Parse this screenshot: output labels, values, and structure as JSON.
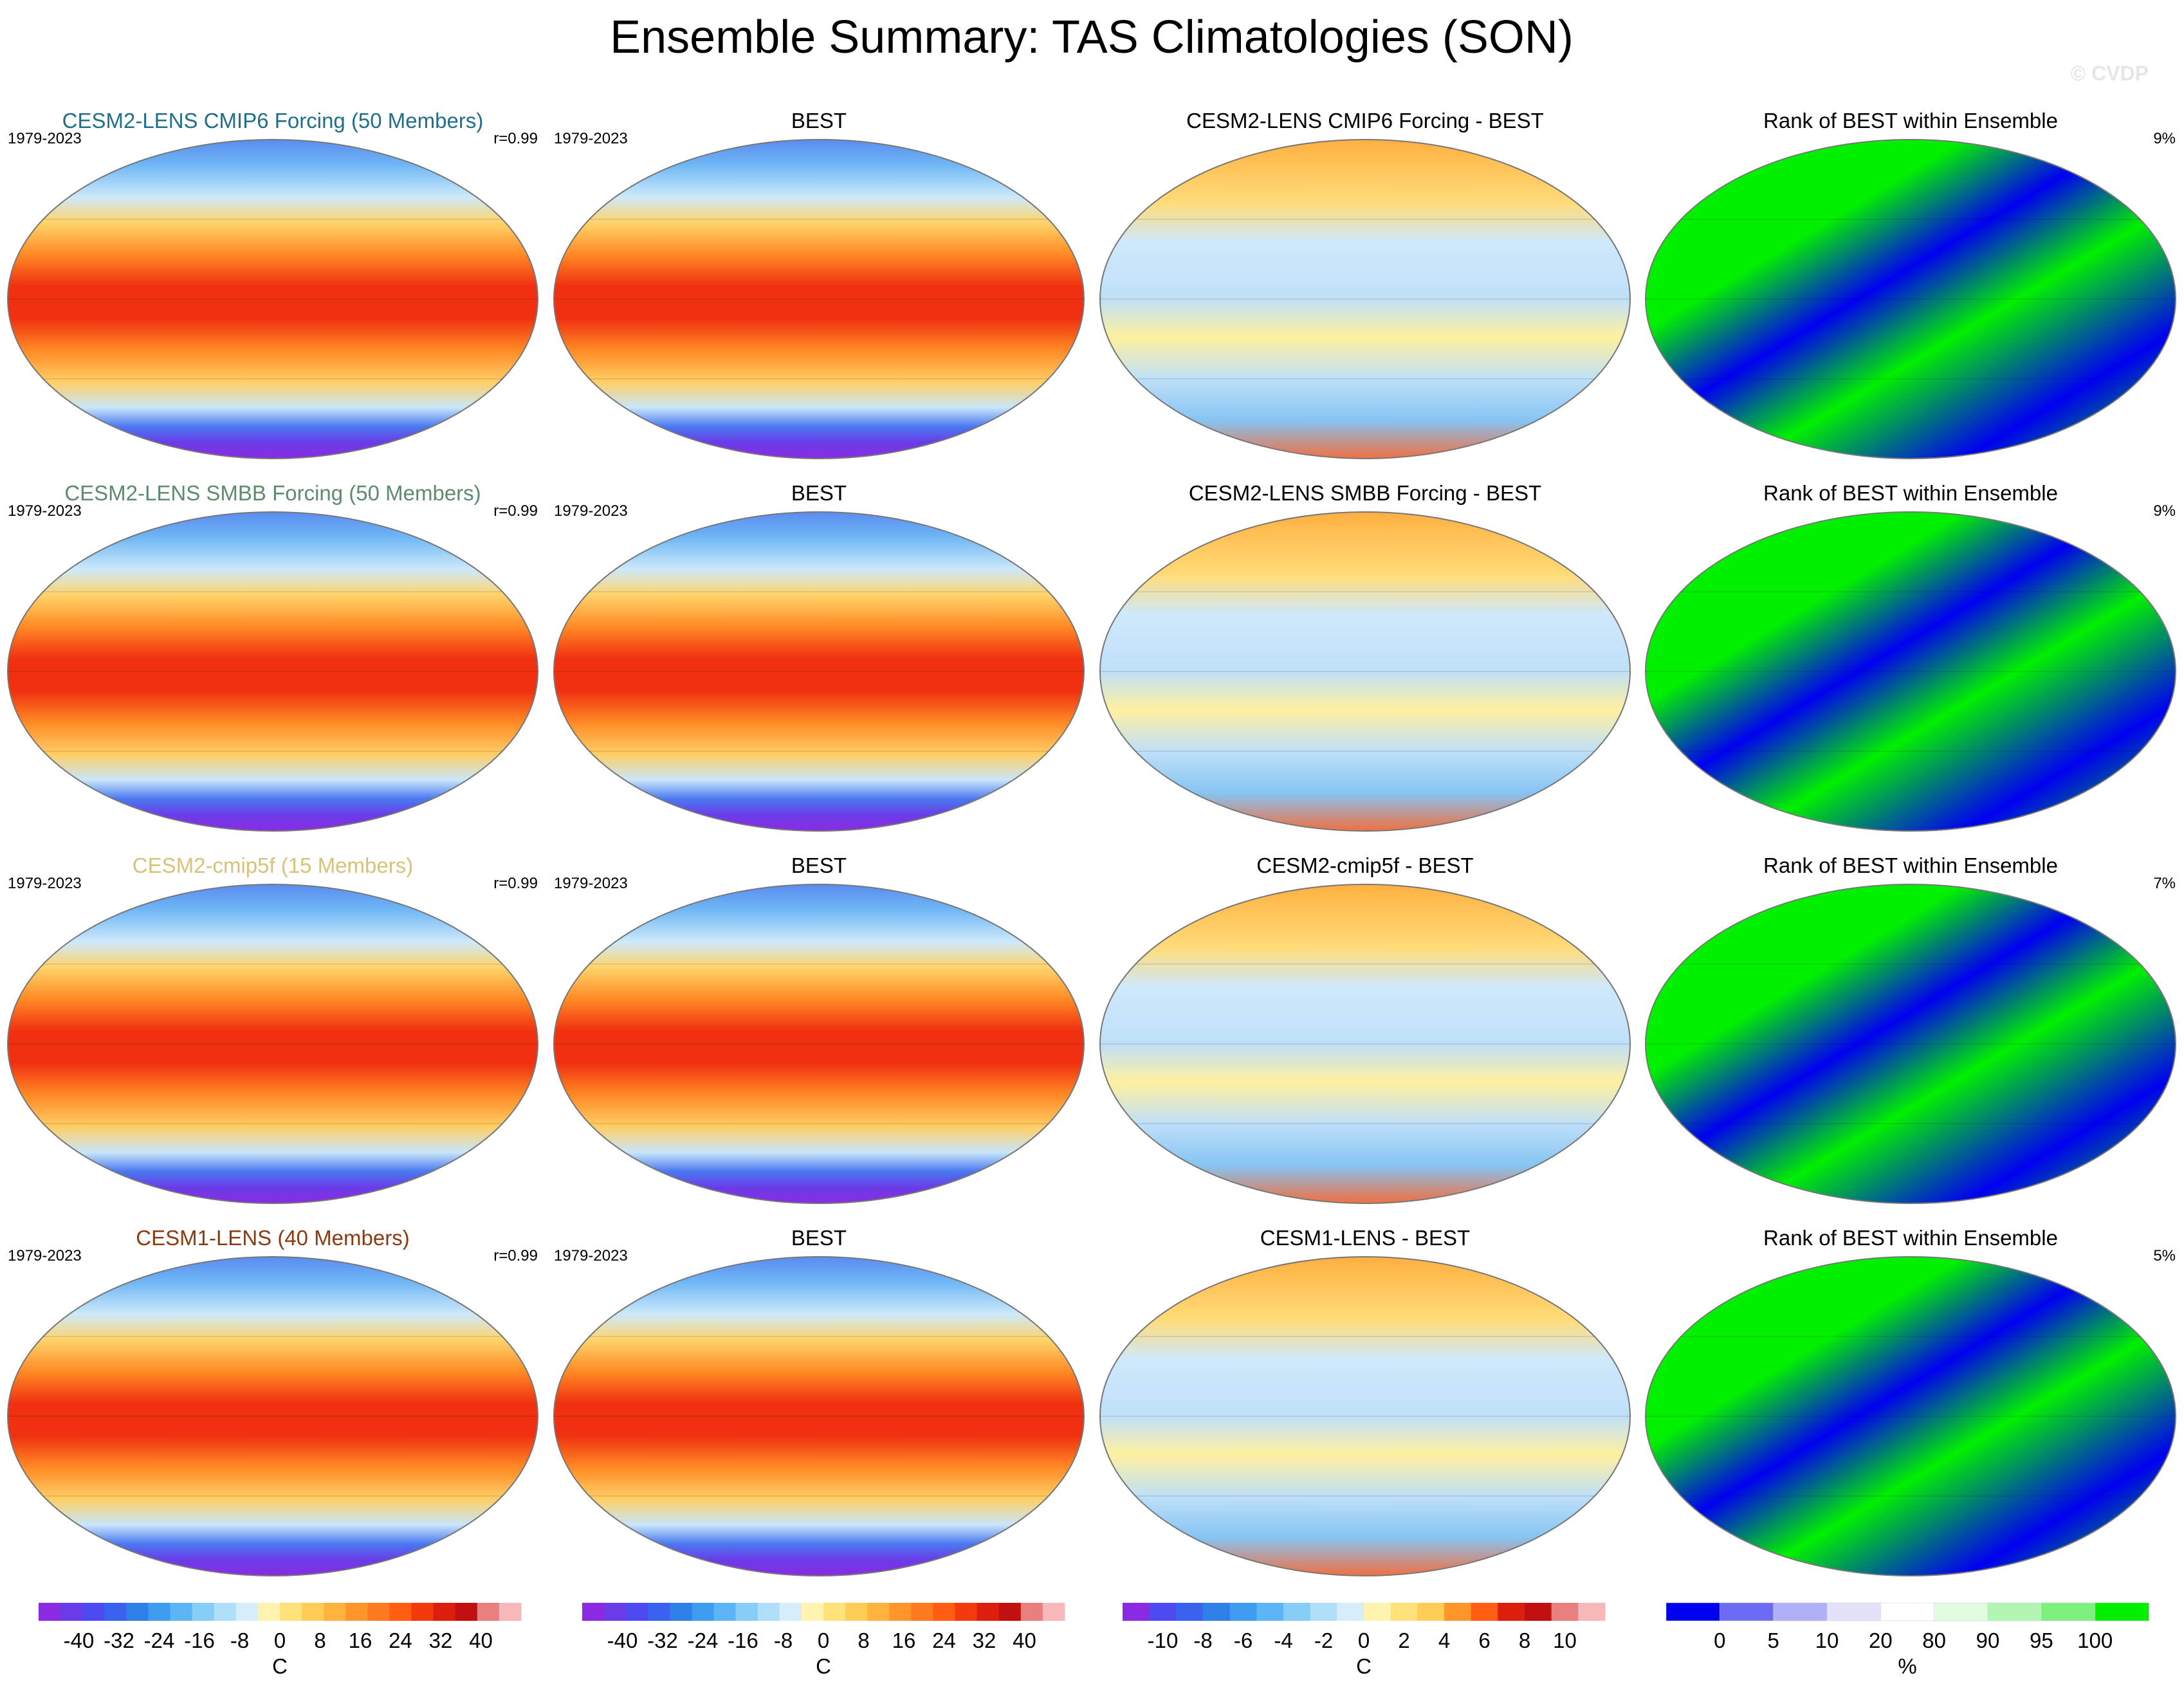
{
  "figure": {
    "title": "Ensemble Summary: TAS Climatologies (SON)",
    "watermark": "© CVDP"
  },
  "chart_data": [
    {
      "type": "heatmap",
      "row": 0,
      "col": 0,
      "title": "CESM2-LENS CMIP6 Forcing (50 Members)",
      "title_color": "#1f6e8c",
      "left_label": "1979-2023",
      "right_label": "r=0.99",
      "field": "temperature",
      "colorbar": 0
    },
    {
      "type": "heatmap",
      "row": 0,
      "col": 1,
      "title": "BEST",
      "title_color": "#000000",
      "left_label": "1979-2023",
      "right_label": "",
      "field": "temperature",
      "colorbar": 1
    },
    {
      "type": "heatmap",
      "row": 0,
      "col": 2,
      "title": "CESM2-LENS CMIP6 Forcing - BEST",
      "title_color": "#000000",
      "left_label": "",
      "right_label": "",
      "field": "difference",
      "colorbar": 2
    },
    {
      "type": "heatmap",
      "row": 0,
      "col": 3,
      "title": "Rank of BEST within Ensemble",
      "title_color": "#000000",
      "left_label": "",
      "right_label": "9%",
      "field": "rank",
      "colorbar": 3
    },
    {
      "type": "heatmap",
      "row": 1,
      "col": 0,
      "title": "CESM2-LENS SMBB Forcing (50 Members)",
      "title_color": "#5e8a6e",
      "left_label": "1979-2023",
      "right_label": "r=0.99",
      "field": "temperature",
      "colorbar": 0
    },
    {
      "type": "heatmap",
      "row": 1,
      "col": 1,
      "title": "BEST",
      "title_color": "#000000",
      "left_label": "1979-2023",
      "right_label": "",
      "field": "temperature",
      "colorbar": 1
    },
    {
      "type": "heatmap",
      "row": 1,
      "col": 2,
      "title": "CESM2-LENS SMBB Forcing - BEST",
      "title_color": "#000000",
      "left_label": "",
      "right_label": "",
      "field": "difference",
      "colorbar": 2
    },
    {
      "type": "heatmap",
      "row": 1,
      "col": 3,
      "title": "Rank of BEST within Ensemble",
      "title_color": "#000000",
      "left_label": "",
      "right_label": "9%",
      "field": "rank",
      "colorbar": 3
    },
    {
      "type": "heatmap",
      "row": 2,
      "col": 0,
      "title": "CESM2-cmip5f (15 Members)",
      "title_color": "#d8c27a",
      "left_label": "1979-2023",
      "right_label": "r=0.99",
      "field": "temperature",
      "colorbar": 0
    },
    {
      "type": "heatmap",
      "row": 2,
      "col": 1,
      "title": "BEST",
      "title_color": "#000000",
      "left_label": "1979-2023",
      "right_label": "",
      "field": "temperature",
      "colorbar": 1
    },
    {
      "type": "heatmap",
      "row": 2,
      "col": 2,
      "title": "CESM2-cmip5f - BEST",
      "title_color": "#000000",
      "left_label": "",
      "right_label": "",
      "field": "difference",
      "colorbar": 2
    },
    {
      "type": "heatmap",
      "row": 2,
      "col": 3,
      "title": "Rank of BEST within Ensemble",
      "title_color": "#000000",
      "left_label": "",
      "right_label": "7%",
      "field": "rank",
      "colorbar": 3
    },
    {
      "type": "heatmap",
      "row": 3,
      "col": 0,
      "title": "CESM1-LENS (40 Members)",
      "title_color": "#8a3b12",
      "left_label": "1979-2023",
      "right_label": "r=0.99",
      "field": "temperature",
      "colorbar": 0
    },
    {
      "type": "heatmap",
      "row": 3,
      "col": 1,
      "title": "BEST",
      "title_color": "#000000",
      "left_label": "1979-2023",
      "right_label": "",
      "field": "temperature",
      "colorbar": 1
    },
    {
      "type": "heatmap",
      "row": 3,
      "col": 2,
      "title": "CESM1-LENS - BEST",
      "title_color": "#000000",
      "left_label": "",
      "right_label": "",
      "field": "difference",
      "colorbar": 2
    },
    {
      "type": "heatmap",
      "row": 3,
      "col": 3,
      "title": "Rank of BEST within Ensemble",
      "title_color": "#000000",
      "left_label": "",
      "right_label": "5%",
      "field": "rank",
      "colorbar": 3
    }
  ],
  "colorbars": [
    {
      "unit": "C",
      "labels": [
        "-40",
        "-32",
        "-24",
        "-16",
        "-8",
        "0",
        "8",
        "16",
        "24",
        "32",
        "40"
      ],
      "colors": [
        "#8a2be2",
        "#6a3ce8",
        "#4b4bf0",
        "#3a62ef",
        "#2e7fe8",
        "#3f9cf0",
        "#5cb6f5",
        "#86cdf7",
        "#b0dff9",
        "#d6eefb",
        "#fff3b0",
        "#ffe27a",
        "#ffcc55",
        "#ffb23c",
        "#ff962b",
        "#ff7a1f",
        "#ff5c14",
        "#f23a0e",
        "#dc1f0c",
        "#c21010",
        "#e88080",
        "#f6b8b8"
      ]
    },
    {
      "unit": "C",
      "labels": [
        "-40",
        "-32",
        "-24",
        "-16",
        "-8",
        "0",
        "8",
        "16",
        "24",
        "32",
        "40"
      ],
      "colors": [
        "#8a2be2",
        "#6a3ce8",
        "#4b4bf0",
        "#3a62ef",
        "#2e7fe8",
        "#3f9cf0",
        "#5cb6f5",
        "#86cdf7",
        "#b0dff9",
        "#d6eefb",
        "#fff3b0",
        "#ffe27a",
        "#ffcc55",
        "#ffb23c",
        "#ff962b",
        "#ff7a1f",
        "#ff5c14",
        "#f23a0e",
        "#dc1f0c",
        "#c21010",
        "#e88080",
        "#f6b8b8"
      ]
    },
    {
      "unit": "C",
      "labels": [
        "-10",
        "-8",
        "-6",
        "-4",
        "-2",
        "0",
        "2",
        "4",
        "6",
        "8",
        "10"
      ],
      "colors": [
        "#8a2be2",
        "#4b4bf0",
        "#3a62ef",
        "#2e7fe8",
        "#3f9cf0",
        "#5cb6f5",
        "#86cdf7",
        "#b0dff9",
        "#d6eefb",
        "#fff3b0",
        "#ffe27a",
        "#ffcc55",
        "#ff962b",
        "#ff5c14",
        "#dc1f0c",
        "#c21010",
        "#e88080",
        "#f6b8b8"
      ]
    },
    {
      "unit": "%",
      "labels": [
        "0",
        "5",
        "10",
        "20",
        "80",
        "90",
        "95",
        "100"
      ],
      "colors": [
        "#0000f0",
        "#6b6bf5",
        "#b0b0f8",
        "#e2e2fb",
        "#ffffff",
        "#e0fbe0",
        "#b3f5b3",
        "#7ef07e",
        "#00f000"
      ]
    }
  ]
}
